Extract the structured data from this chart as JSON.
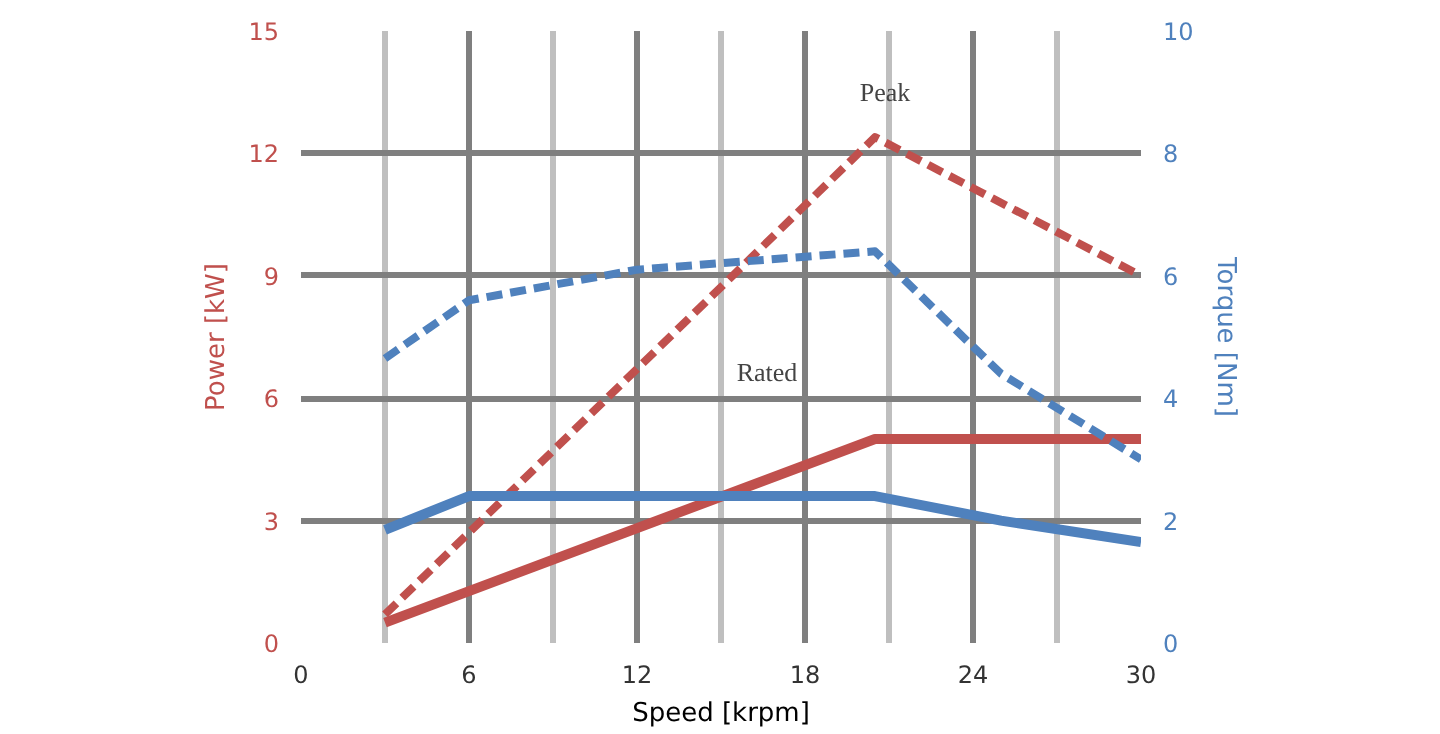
{
  "chart_data": {
    "type": "line",
    "xlabel": "Speed [krpm]",
    "ylabel": "Power [kW]",
    "y2label": "Torque [Nm]",
    "xlim": [
      0,
      30
    ],
    "xticks": [
      0,
      6,
      12,
      18,
      24,
      30
    ],
    "ylim": [
      0,
      15
    ],
    "yticks": [
      0,
      3,
      6,
      9,
      12,
      15
    ],
    "y2lim": [
      0,
      10
    ],
    "y2ticks": [
      0,
      2,
      4,
      6,
      8,
      10
    ],
    "grid": true,
    "annotations": [
      "Peak",
      "Rated"
    ],
    "series": [
      {
        "color": "#c0504d",
        "line_style": "solid",
        "x": [
          3,
          20.5,
          30
        ],
        "values": [
          0.5,
          5,
          5
        ]
      },
      {
        "color": "#c0504d",
        "line_style": "dashed",
        "x": [
          3,
          20.5,
          30
        ],
        "values": [
          0.7,
          12.4,
          9
        ]
      },
      {
        "color": "#4f81bd",
        "line_style": "solid",
        "axis": "y2",
        "x": [
          3,
          6,
          20.5,
          25,
          30
        ],
        "values": [
          1.85,
          2.4,
          2.4,
          2.0,
          1.65
        ]
      },
      {
        "color": "#4f81bd",
        "line_style": "dashed",
        "axis": "y2",
        "x": [
          3,
          6,
          12,
          20.5,
          25,
          30
        ],
        "values": [
          4.65,
          5.6,
          6.1,
          6.4,
          4.4,
          3.0
        ]
      }
    ]
  }
}
